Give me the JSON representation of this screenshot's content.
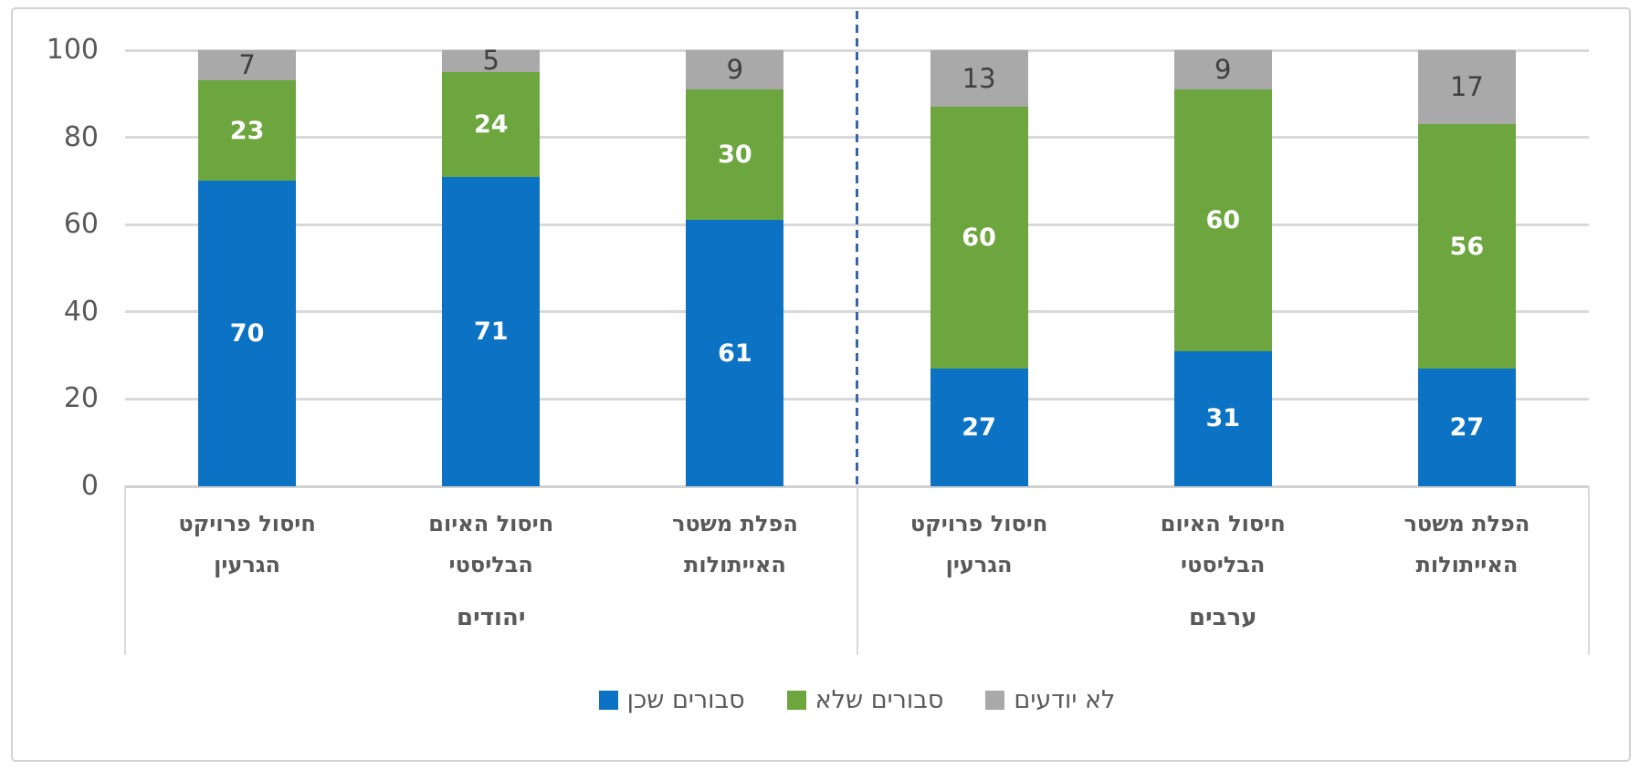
{
  "chart_data": {
    "type": "bar",
    "variant": "stacked-column-100",
    "title": "",
    "y_axis": {
      "min": 0,
      "max": 100,
      "ticks": [
        0,
        20,
        40,
        60,
        80,
        100
      ]
    },
    "grid": "horizontal",
    "legend_position": "bottom",
    "groups": [
      {
        "label": "יהודים",
        "categories": [
          {
            "label": "חיסול פרויקט הגרעין",
            "label_lines": [
              "חיסול פרויקט",
              "הגרעין"
            ]
          },
          {
            "label": "חיסול האיום הבליסטי",
            "label_lines": [
              "חיסול האיום",
              "הבליסטי"
            ]
          },
          {
            "label": "הפלת משטר האייתולות",
            "label_lines": [
              "הפלת משטר",
              "האייתולות"
            ]
          }
        ]
      },
      {
        "label": "ערבים",
        "categories": [
          {
            "label": "חיסול פרויקט הגרעין",
            "label_lines": [
              "חיסול פרויקט",
              "הגרעין"
            ]
          },
          {
            "label": "חיסול האיום הבליסטי",
            "label_lines": [
              "חיסול האיום",
              "הבליסטי"
            ]
          },
          {
            "label": "הפלת משטר האייתולות",
            "label_lines": [
              "הפלת משטר",
              "האייתולות"
            ]
          }
        ]
      }
    ],
    "series": [
      {
        "name": "סבורים שכן",
        "color": "#0b72c4",
        "label_color": "#ffffff",
        "label_bold": true,
        "values": [
          70,
          71,
          61,
          27,
          31,
          27
        ]
      },
      {
        "name": "סבורים שלא",
        "color": "#6da63e",
        "label_color": "#ffffff",
        "label_bold": true,
        "values": [
          23,
          24,
          30,
          60,
          60,
          56
        ]
      },
      {
        "name": "לא יודעים",
        "color": "#a9a9a9",
        "label_color": "#3f3f3f",
        "label_bold": false,
        "values": [
          7,
          5,
          9,
          13,
          9,
          17
        ]
      }
    ],
    "separator": {
      "style": "dashed",
      "color": "#3764aa",
      "position": "between-groups"
    }
  },
  "colors": {
    "text": "#595959",
    "gridline": "#d9d9d9",
    "axis_line": "#d1d1d1",
    "frame_border": "#d3d3d3",
    "background": "#ffffff"
  }
}
